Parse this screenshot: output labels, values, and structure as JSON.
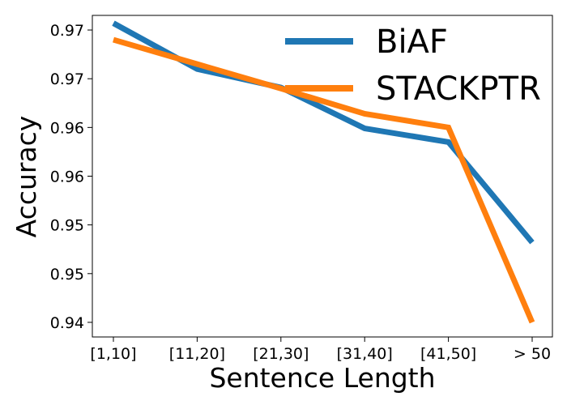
{
  "chart_data": {
    "type": "line",
    "title": "",
    "xlabel": "Sentence Length",
    "ylabel": "Accuracy",
    "categories": [
      "[1,10]",
      "[11,20]",
      "[21,30]",
      "[31,40]",
      "[41,50]",
      "> 50"
    ],
    "yticks": [
      0.944,
      0.949,
      0.954,
      0.959,
      0.964,
      0.969,
      0.974
    ],
    "ytick_labels": [
      "0.94",
      "0.95",
      "0.95",
      "0.96",
      "0.96",
      "0.97",
      "0.97"
    ],
    "ylim": [
      0.9425,
      0.9755
    ],
    "grid": false,
    "legend_position": "top-right",
    "series": [
      {
        "name": "BiAF",
        "color": "#1f77b4",
        "values": [
          0.9747,
          0.97,
          0.9681,
          0.9639,
          0.9625,
          0.9522
        ]
      },
      {
        "name": "STACKPTR",
        "color": "#ff7f0e",
        "values": [
          0.973,
          0.9705,
          0.968,
          0.9654,
          0.964,
          0.944
        ]
      }
    ]
  }
}
